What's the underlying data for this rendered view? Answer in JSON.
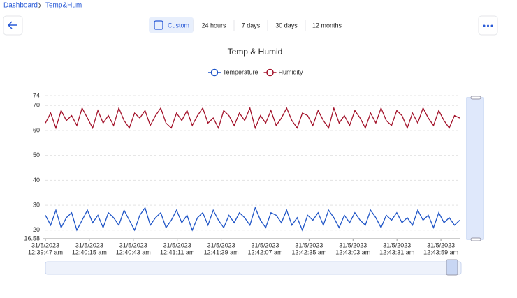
{
  "breadcrumb": [
    "Dashboard",
    "Temp&Hum"
  ],
  "tabs": [
    "Custom",
    "24 hours",
    "7 days",
    "30 days",
    "12 months"
  ],
  "active_tab": 0,
  "chart_data": {
    "type": "line",
    "title": "Temp & Humid",
    "series": [
      {
        "name": "Temperature",
        "color": "#1f55c7",
        "values": [
          26,
          22,
          28,
          21,
          25,
          27,
          20,
          24,
          28,
          23,
          26,
          21,
          27,
          25,
          22,
          28,
          24,
          20,
          26,
          29,
          22,
          25,
          27,
          21,
          24,
          28,
          23,
          26,
          20,
          25,
          27,
          22,
          28,
          24,
          21,
          26,
          23,
          27,
          25,
          22,
          29,
          24,
          21,
          27,
          26,
          23,
          28,
          22,
          25,
          20,
          26,
          24,
          27,
          22,
          28,
          25,
          21,
          26,
          23,
          27,
          24,
          22,
          28,
          25,
          21,
          26,
          24,
          27,
          23,
          25,
          22,
          28,
          24,
          26,
          21,
          27,
          23,
          25,
          22,
          24
        ]
      },
      {
        "name": "Humidity",
        "color": "#a3122a",
        "values": [
          63,
          67,
          61,
          68,
          64,
          66,
          62,
          69,
          65,
          61,
          68,
          63,
          66,
          62,
          69,
          64,
          61,
          67,
          65,
          68,
          62,
          66,
          69,
          63,
          61,
          67,
          64,
          68,
          62,
          66,
          69,
          63,
          65,
          61,
          68,
          66,
          62,
          67,
          64,
          69,
          61,
          66,
          63,
          68,
          62,
          65,
          69,
          64,
          61,
          67,
          66,
          62,
          68,
          64,
          61,
          69,
          63,
          66,
          62,
          68,
          65,
          61,
          67,
          63,
          69,
          64,
          62,
          68,
          66,
          61,
          67,
          63,
          69,
          65,
          62,
          68,
          64,
          61,
          66,
          65
        ]
      }
    ],
    "ylim": [
      16.58,
      74
    ],
    "yticks": [
      16.58,
      20,
      30,
      40,
      50,
      60,
      70,
      74
    ],
    "grid": true,
    "xticks": [
      [
        "31/5/2023",
        "12:39:47 am"
      ],
      [
        "31/5/2023",
        "12:40:15 am"
      ],
      [
        "31/5/2023",
        "12:40:43 am"
      ],
      [
        "31/5/2023",
        "12:41:11 am"
      ],
      [
        "31/5/2023",
        "12:41:39 am"
      ],
      [
        "31/5/2023",
        "12:42:07 am"
      ],
      [
        "31/5/2023",
        "12:42:35 am"
      ],
      [
        "31/5/2023",
        "12:43:03 am"
      ],
      [
        "31/5/2023",
        "12:43:31 am"
      ],
      [
        "31/5/2023",
        "12:43:59 am"
      ]
    ],
    "legend": "top"
  }
}
